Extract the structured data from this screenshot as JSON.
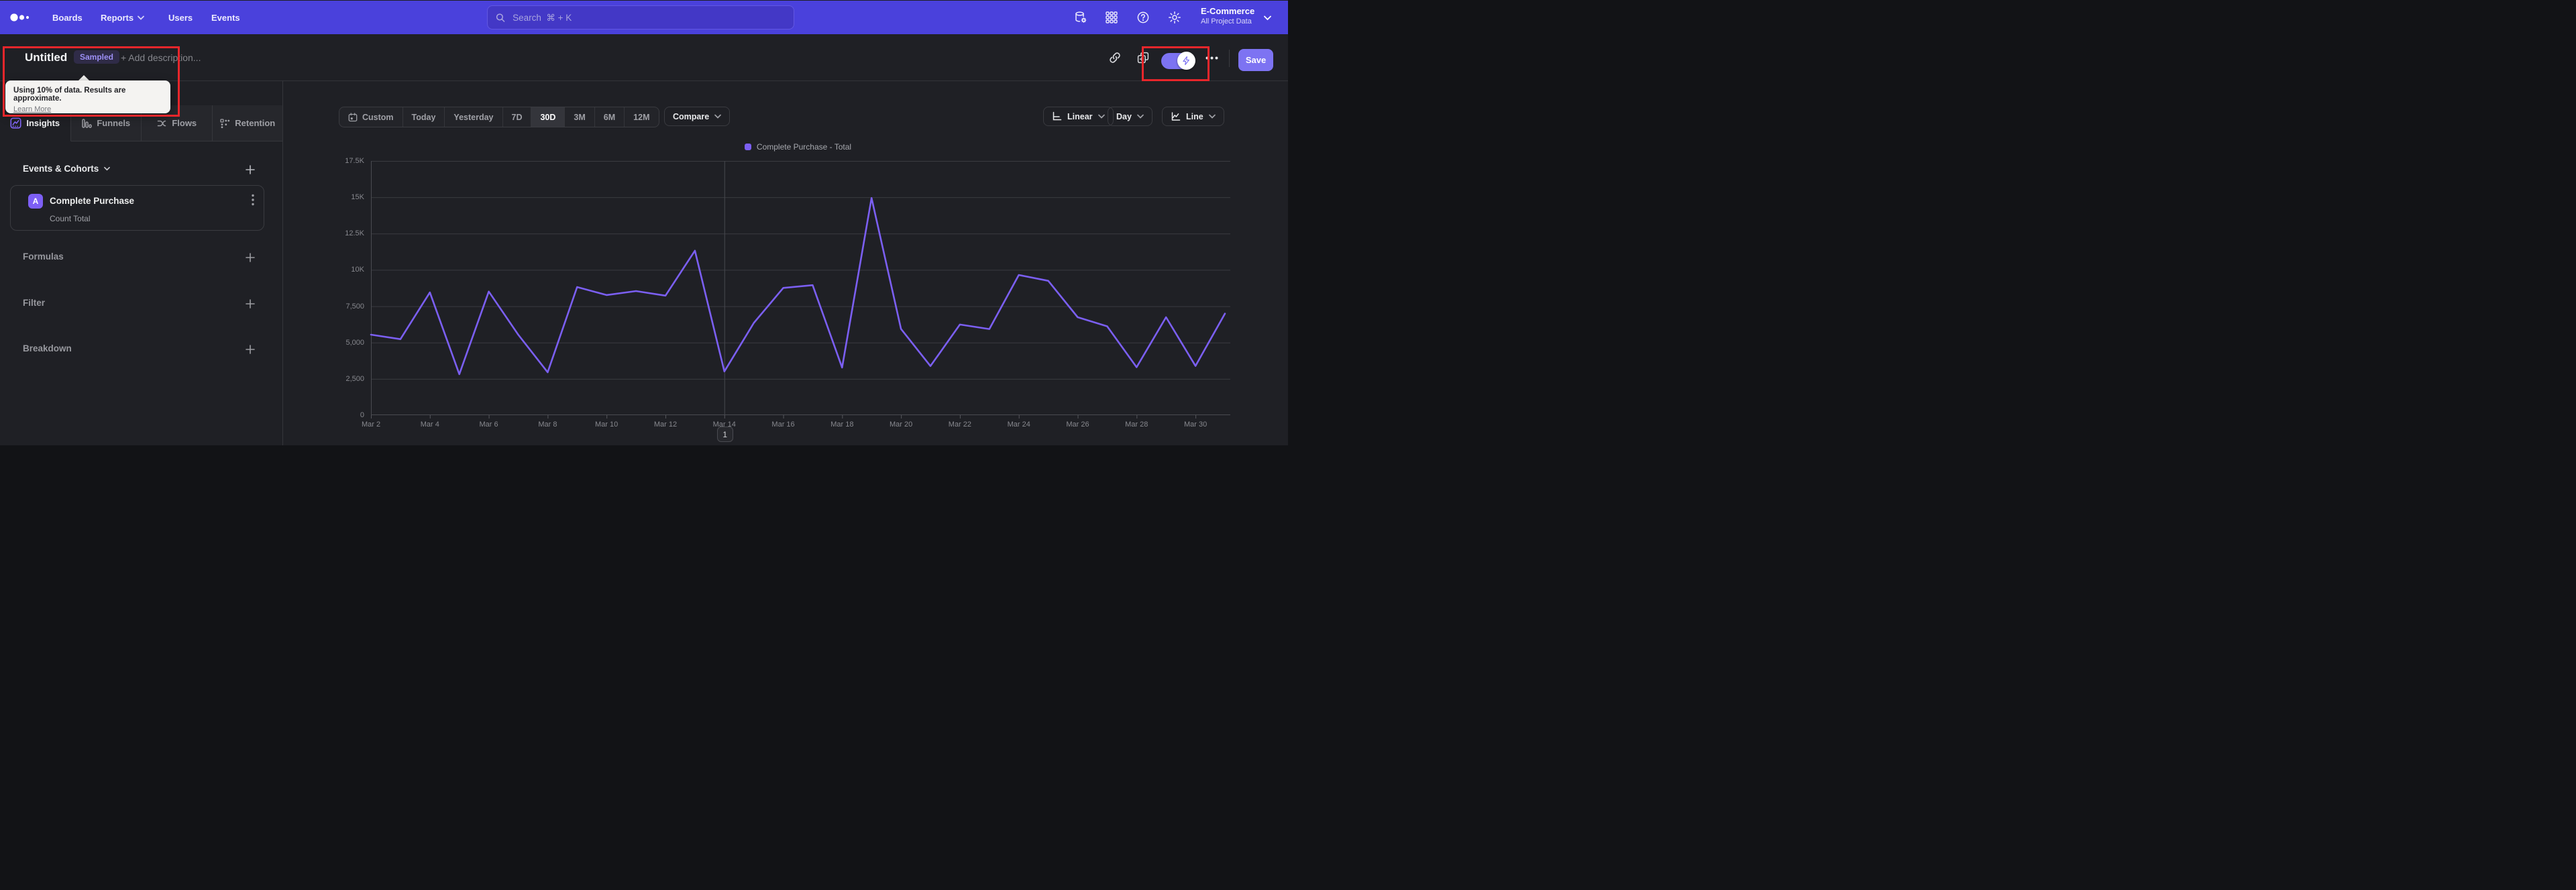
{
  "nav": {
    "items": [
      "Boards",
      "Reports",
      "Users",
      "Events"
    ],
    "search_placeholder": "Search  ⌘ + K",
    "project_name": "E-Commerce",
    "project_scope": "All Project Data"
  },
  "title_bar": {
    "title": "Untitled",
    "badge": "Sampled",
    "add_description": "+ Add description...",
    "save_label": "Save"
  },
  "sampling_tooltip": {
    "message": "Using 10% of data. Results are approximate.",
    "link_label": "Learn More"
  },
  "sidebar": {
    "tabs": [
      "Insights",
      "Funnels",
      "Flows",
      "Retention"
    ],
    "active_tab": "Insights",
    "events_header": "Events & Cohorts",
    "event": {
      "letter": "A",
      "name": "Complete Purchase",
      "metric": "Count Total"
    },
    "sections": [
      "Formulas",
      "Filter",
      "Breakdown"
    ]
  },
  "controls": {
    "ranges": [
      "Custom",
      "Today",
      "Yesterday",
      "7D",
      "30D",
      "3M",
      "6M",
      "12M"
    ],
    "active_range": "30D",
    "compare_label": "Compare",
    "scale_label": "Linear",
    "interval_label": "Day",
    "chart_type_label": "Line"
  },
  "chart_data": {
    "type": "line",
    "title": "Complete Purchase - Total",
    "legend": [
      {
        "label": "Complete Purchase - Total"
      }
    ],
    "x": [
      "Mar 2",
      "Mar 3",
      "Mar 4",
      "Mar 5",
      "Mar 6",
      "Mar 7",
      "Mar 8",
      "Mar 9",
      "Mar 10",
      "Mar 11",
      "Mar 12",
      "Mar 13",
      "Mar 14",
      "Mar 15",
      "Mar 16",
      "Mar 17",
      "Mar 18",
      "Mar 19",
      "Mar 20",
      "Mar 21",
      "Mar 22",
      "Mar 23",
      "Mar 24",
      "Mar 25",
      "Mar 26",
      "Mar 27",
      "Mar 28",
      "Mar 29",
      "Mar 30",
      "Mar 31"
    ],
    "values": [
      5540,
      5230,
      8450,
      2820,
      8510,
      5540,
      2950,
      8820,
      8270,
      8540,
      8230,
      11320,
      3010,
      6350,
      8760,
      8950,
      3280,
      14950,
      5940,
      3380,
      6240,
      5930,
      9650,
      9250,
      6740,
      6120,
      3300,
      6740,
      3390,
      6990
    ],
    "ylim": [
      0,
      17500
    ],
    "yticks": [
      {
        "v": 0,
        "label": "0"
      },
      {
        "v": 2500,
        "label": "2,500"
      },
      {
        "v": 5000,
        "label": "5,000"
      },
      {
        "v": 7500,
        "label": "7,500"
      },
      {
        "v": 10000,
        "label": "10K"
      },
      {
        "v": 12500,
        "label": "12.5K"
      },
      {
        "v": 15000,
        "label": "15K"
      },
      {
        "v": 17500,
        "label": "17.5K"
      }
    ],
    "xtick_every": 2,
    "grid": true,
    "legend_position": "top-center",
    "annotation": {
      "label": "1",
      "x_index": 12
    },
    "line_color": "#7b5ff2"
  },
  "colors": {
    "accent": "#7b5ff2",
    "nav_background": "#4a41dc",
    "red_annotation": "#e8262b",
    "save_button": "#7d73f2"
  }
}
